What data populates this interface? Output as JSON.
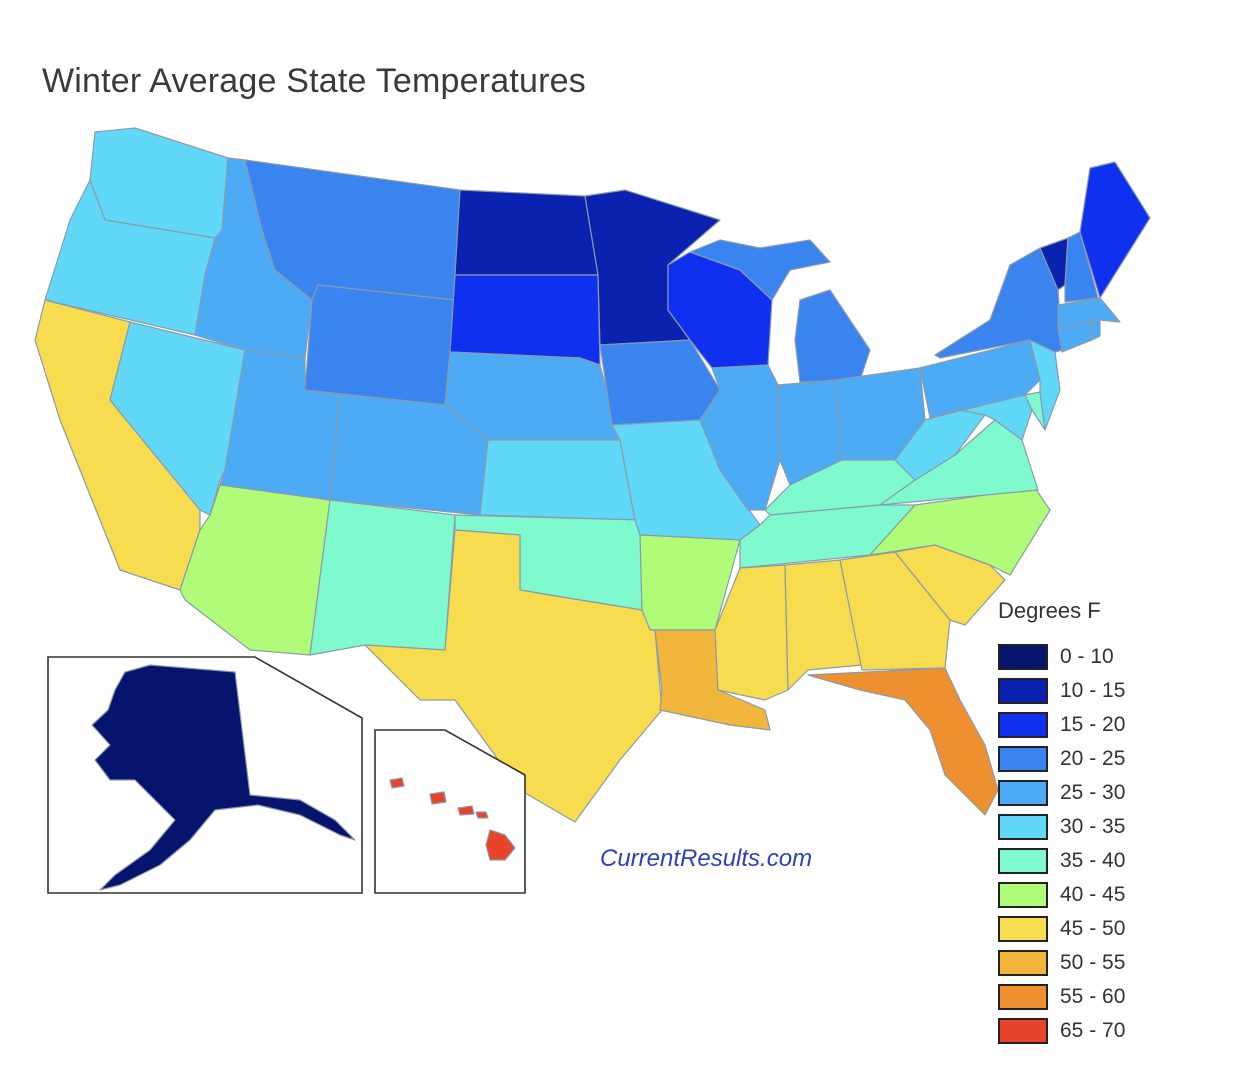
{
  "title": "Winter Average State Temperatures",
  "credit": "CurrentResults.com",
  "legend": {
    "title": "Degrees F",
    "items": [
      {
        "label": "0 - 10",
        "color": "#07146e"
      },
      {
        "label": "10 - 15",
        "color": "#0b22b0"
      },
      {
        "label": "15 - 20",
        "color": "#1030f0"
      },
      {
        "label": "20 - 25",
        "color": "#3a84ef"
      },
      {
        "label": "25 - 30",
        "color": "#4dabf5"
      },
      {
        "label": "30 - 35",
        "color": "#62d8f8"
      },
      {
        "label": "35 - 40",
        "color": "#7ffacf"
      },
      {
        "label": "40 - 45",
        "color": "#b0fc78"
      },
      {
        "label": "45 - 50",
        "color": "#f8dc50"
      },
      {
        "label": "50 - 55",
        "color": "#f2b63c"
      },
      {
        "label": "55 - 60",
        "color": "#ee9030"
      },
      {
        "label": "65 - 70",
        "color": "#e8442a"
      }
    ]
  },
  "states": {
    "washington": "30 - 35",
    "oregon": "30 - 35",
    "california": "45 - 50",
    "nevada": "30 - 35",
    "idaho": "25 - 30",
    "montana": "20 - 25",
    "wyoming": "20 - 25",
    "utah": "25 - 30",
    "arizona": "40 - 45",
    "colorado": "25 - 30",
    "new-mexico": "35 - 40",
    "north-dakota": "10 - 15",
    "south-dakota": "15 - 20",
    "nebraska": "25 - 30",
    "kansas": "30 - 35",
    "oklahoma": "35 - 40",
    "texas": "45 - 50",
    "minnesota": "10 - 15",
    "iowa": "20 - 25",
    "missouri": "30 - 35",
    "arkansas": "40 - 45",
    "louisiana": "50 - 55",
    "wisconsin": "15 - 20",
    "illinois": "25 - 30",
    "michigan": "20 - 25",
    "indiana": "25 - 30",
    "ohio": "25 - 30",
    "kentucky": "35 - 40",
    "tennessee": "35 - 40",
    "mississippi": "45 - 50",
    "alabama": "45 - 50",
    "georgia": "45 - 50",
    "florida": "55 - 60",
    "south-carolina": "45 - 50",
    "north-carolina": "40 - 45",
    "virginia": "35 - 40",
    "west-virginia": "30 - 35",
    "pennsylvania": "25 - 30",
    "new-york": "20 - 25",
    "new-jersey": "30 - 35",
    "delaware": "35 - 40",
    "maryland": "30 - 35",
    "connecticut": "25 - 30",
    "rhode-island": "25 - 30",
    "massachusetts": "25 - 30",
    "vermont": "10 - 15",
    "new-hampshire": "20 - 25",
    "maine": "15 - 20",
    "alaska": "0 - 10",
    "hawaii": "65 - 70"
  }
}
